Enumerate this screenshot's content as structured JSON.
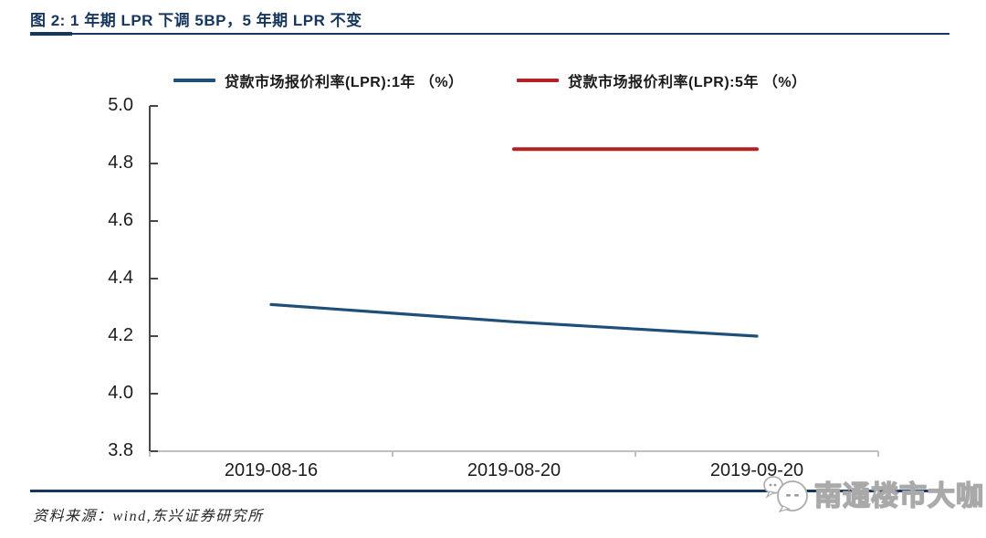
{
  "header": {
    "title": "图 2: 1 年期 LPR 下调 5BP，5 年期 LPR 不变"
  },
  "colors": {
    "accent_navy": "#17365D",
    "series_1y_blue": "#1F4E79",
    "series_5y_red": "#B22222"
  },
  "chart_data": {
    "type": "line",
    "title": "1 年期 LPR 下调 5BP，5 年期 LPR 不变",
    "categories": [
      "2019-08-16",
      "2019-08-20",
      "2019-09-20"
    ],
    "series": [
      {
        "name": "贷款市场报价利率(LPR):1年 （%）",
        "color": "#1F4E79",
        "values": [
          4.31,
          4.25,
          4.2
        ]
      },
      {
        "name": "贷款市场报价利率(LPR):5年 （%）",
        "color": "#B22222",
        "values": [
          null,
          4.85,
          4.85
        ]
      }
    ],
    "xlabel": "",
    "ylabel": "",
    "ylim": [
      3.8,
      5.0
    ],
    "ytick_labels": [
      "5.0",
      "4.8",
      "4.6",
      "4.4",
      "4.2",
      "4.0",
      "3.8"
    ],
    "grid": false,
    "legend_position": "top"
  },
  "footer": {
    "source": "资料来源：wind,东兴证券研究所"
  },
  "watermark": {
    "text": "南通楼市大咖"
  }
}
